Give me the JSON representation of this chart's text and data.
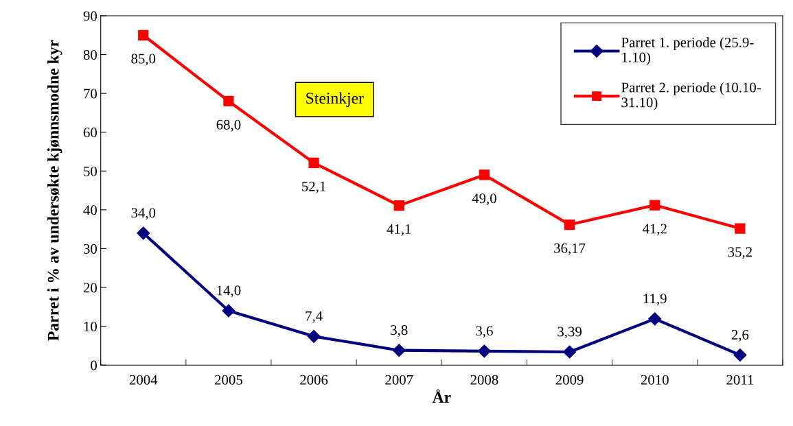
{
  "chart_data": {
    "type": "line",
    "xlabel": "År",
    "ylabel": "Parret i % av undersøkte kjønnsmodne kyr",
    "categories": [
      "2004",
      "2005",
      "2006",
      "2007",
      "2008",
      "2009",
      "2010",
      "2011"
    ],
    "series": [
      {
        "name": "Parret 1. periode (25.9-\n1.10)",
        "color": "#000080",
        "marker": "diamond",
        "values": [
          34.0,
          14.0,
          7.4,
          3.8,
          3.6,
          3.39,
          11.9,
          2.6
        ],
        "value_labels": [
          "34,0",
          "14,0",
          "7,4",
          "3,8",
          "3,6",
          "3,39",
          "11,9",
          "2,6"
        ]
      },
      {
        "name": "Parret 2. periode (10.10-\n31.10)",
        "color": "#ff0000",
        "marker": "square",
        "values": [
          85.0,
          68.0,
          52.1,
          41.1,
          49.0,
          36.17,
          41.2,
          35.2
        ],
        "value_labels": [
          "85,0",
          "68,0",
          "52,1",
          "41,1",
          "49,0",
          "36,17",
          "41,2",
          "35,2"
        ]
      }
    ],
    "ylim": [
      0,
      90
    ],
    "yticks": [
      0,
      10,
      20,
      30,
      40,
      50,
      60,
      70,
      80,
      90
    ],
    "grid": false,
    "legend": "top right",
    "line_style": "solid",
    "annotations": [
      "Steinkjer"
    ]
  }
}
